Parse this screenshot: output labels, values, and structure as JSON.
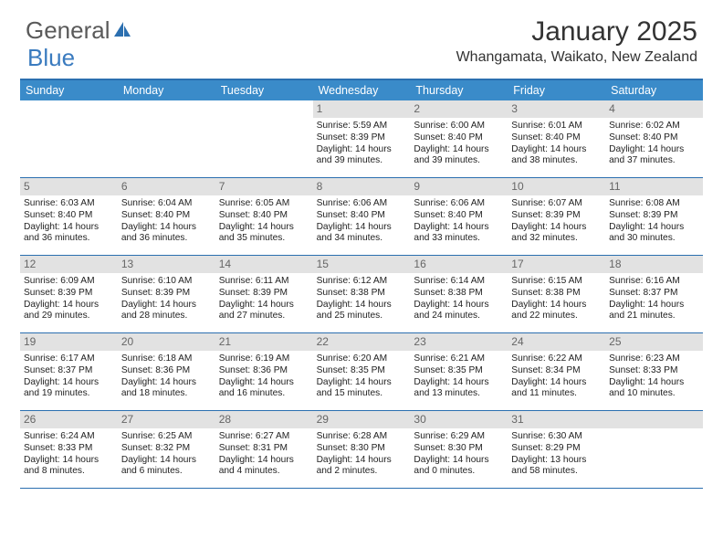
{
  "logo": {
    "part1": "General",
    "part2": "Blue"
  },
  "title": "January 2025",
  "location": "Whangamata, Waikato, New Zealand",
  "colors": {
    "header_bg": "#3a8bc9",
    "rule": "#2b6fb0",
    "date_bg": "#e2e2e2",
    "text": "#222222",
    "muted": "#666666"
  },
  "day_names": [
    "Sunday",
    "Monday",
    "Tuesday",
    "Wednesday",
    "Thursday",
    "Friday",
    "Saturday"
  ],
  "first_weekday": 3,
  "days": [
    {
      "n": 1,
      "sr": "5:59 AM",
      "ss": "8:39 PM",
      "dl": "14 hours and 39 minutes."
    },
    {
      "n": 2,
      "sr": "6:00 AM",
      "ss": "8:40 PM",
      "dl": "14 hours and 39 minutes."
    },
    {
      "n": 3,
      "sr": "6:01 AM",
      "ss": "8:40 PM",
      "dl": "14 hours and 38 minutes."
    },
    {
      "n": 4,
      "sr": "6:02 AM",
      "ss": "8:40 PM",
      "dl": "14 hours and 37 minutes."
    },
    {
      "n": 5,
      "sr": "6:03 AM",
      "ss": "8:40 PM",
      "dl": "14 hours and 36 minutes."
    },
    {
      "n": 6,
      "sr": "6:04 AM",
      "ss": "8:40 PM",
      "dl": "14 hours and 36 minutes."
    },
    {
      "n": 7,
      "sr": "6:05 AM",
      "ss": "8:40 PM",
      "dl": "14 hours and 35 minutes."
    },
    {
      "n": 8,
      "sr": "6:06 AM",
      "ss": "8:40 PM",
      "dl": "14 hours and 34 minutes."
    },
    {
      "n": 9,
      "sr": "6:06 AM",
      "ss": "8:40 PM",
      "dl": "14 hours and 33 minutes."
    },
    {
      "n": 10,
      "sr": "6:07 AM",
      "ss": "8:39 PM",
      "dl": "14 hours and 32 minutes."
    },
    {
      "n": 11,
      "sr": "6:08 AM",
      "ss": "8:39 PM",
      "dl": "14 hours and 30 minutes."
    },
    {
      "n": 12,
      "sr": "6:09 AM",
      "ss": "8:39 PM",
      "dl": "14 hours and 29 minutes."
    },
    {
      "n": 13,
      "sr": "6:10 AM",
      "ss": "8:39 PM",
      "dl": "14 hours and 28 minutes."
    },
    {
      "n": 14,
      "sr": "6:11 AM",
      "ss": "8:39 PM",
      "dl": "14 hours and 27 minutes."
    },
    {
      "n": 15,
      "sr": "6:12 AM",
      "ss": "8:38 PM",
      "dl": "14 hours and 25 minutes."
    },
    {
      "n": 16,
      "sr": "6:14 AM",
      "ss": "8:38 PM",
      "dl": "14 hours and 24 minutes."
    },
    {
      "n": 17,
      "sr": "6:15 AM",
      "ss": "8:38 PM",
      "dl": "14 hours and 22 minutes."
    },
    {
      "n": 18,
      "sr": "6:16 AM",
      "ss": "8:37 PM",
      "dl": "14 hours and 21 minutes."
    },
    {
      "n": 19,
      "sr": "6:17 AM",
      "ss": "8:37 PM",
      "dl": "14 hours and 19 minutes."
    },
    {
      "n": 20,
      "sr": "6:18 AM",
      "ss": "8:36 PM",
      "dl": "14 hours and 18 minutes."
    },
    {
      "n": 21,
      "sr": "6:19 AM",
      "ss": "8:36 PM",
      "dl": "14 hours and 16 minutes."
    },
    {
      "n": 22,
      "sr": "6:20 AM",
      "ss": "8:35 PM",
      "dl": "14 hours and 15 minutes."
    },
    {
      "n": 23,
      "sr": "6:21 AM",
      "ss": "8:35 PM",
      "dl": "14 hours and 13 minutes."
    },
    {
      "n": 24,
      "sr": "6:22 AM",
      "ss": "8:34 PM",
      "dl": "14 hours and 11 minutes."
    },
    {
      "n": 25,
      "sr": "6:23 AM",
      "ss": "8:33 PM",
      "dl": "14 hours and 10 minutes."
    },
    {
      "n": 26,
      "sr": "6:24 AM",
      "ss": "8:33 PM",
      "dl": "14 hours and 8 minutes."
    },
    {
      "n": 27,
      "sr": "6:25 AM",
      "ss": "8:32 PM",
      "dl": "14 hours and 6 minutes."
    },
    {
      "n": 28,
      "sr": "6:27 AM",
      "ss": "8:31 PM",
      "dl": "14 hours and 4 minutes."
    },
    {
      "n": 29,
      "sr": "6:28 AM",
      "ss": "8:30 PM",
      "dl": "14 hours and 2 minutes."
    },
    {
      "n": 30,
      "sr": "6:29 AM",
      "ss": "8:30 PM",
      "dl": "14 hours and 0 minutes."
    },
    {
      "n": 31,
      "sr": "6:30 AM",
      "ss": "8:29 PM",
      "dl": "13 hours and 58 minutes."
    }
  ],
  "labels": {
    "sunrise": "Sunrise:",
    "sunset": "Sunset:",
    "daylight": "Daylight:"
  }
}
